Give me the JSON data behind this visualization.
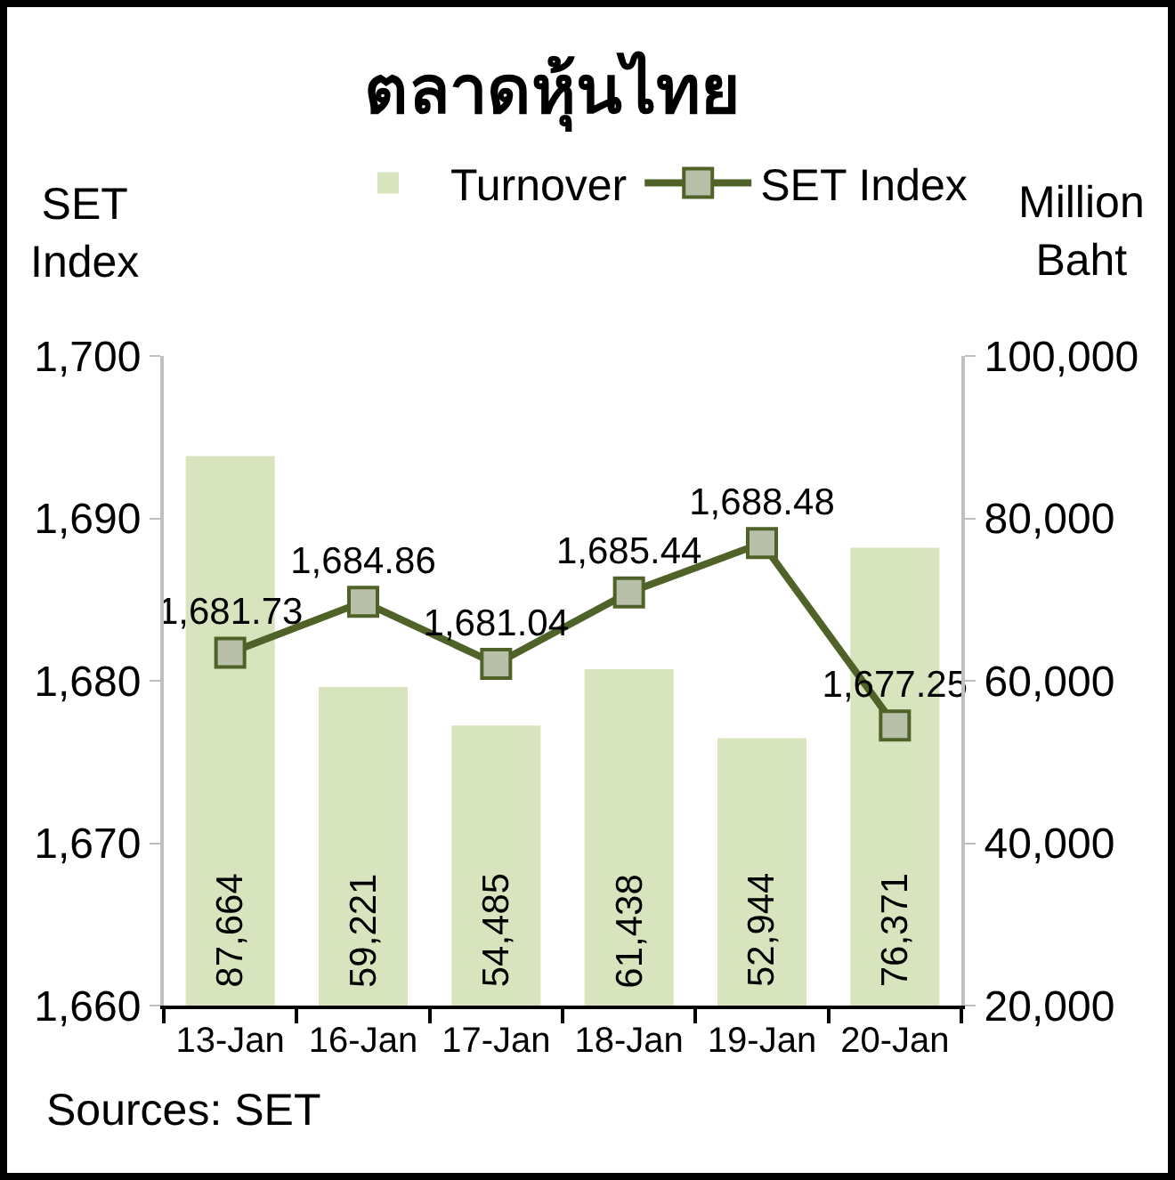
{
  "chart_data": {
    "type": "bar",
    "title": "ตลาดหุ้นไทย",
    "ylabel": "SET Index",
    "y2label": "Million Baht",
    "categories": [
      "13-Jan",
      "16-Jan",
      "17-Jan",
      "18-Jan",
      "19-Jan",
      "20-Jan"
    ],
    "series": [
      {
        "name": "Turnover",
        "axis": "y2",
        "color": "#d7e4bd",
        "values": [
          87664,
          59221,
          54485,
          61438,
          52944,
          76371
        ],
        "value_labels": [
          "87,664",
          "59,221",
          "54,485",
          "61,438",
          "52,944",
          "76,371"
        ]
      },
      {
        "name": "SET Index",
        "type": "line",
        "axis": "y",
        "color": "#4f6228",
        "marker": "square",
        "line_style": "solid",
        "values": [
          1681.73,
          1684.86,
          1681.04,
          1685.44,
          1688.48,
          1677.25
        ],
        "value_labels": [
          "1,681.73",
          "1,684.86",
          "1,681.04",
          "1,685.44",
          "1,688.48",
          "1,677.25"
        ]
      }
    ],
    "ylim": [
      1660,
      1700
    ],
    "yticks": [
      {
        "value": 1660,
        "label": "1,660"
      },
      {
        "value": 1670,
        "label": "1,670"
      },
      {
        "value": 1680,
        "label": "1,680"
      },
      {
        "value": 1690,
        "label": "1,690"
      },
      {
        "value": 1700,
        "label": "1,700"
      }
    ],
    "y2lim": [
      20000,
      100000
    ],
    "y2ticks": [
      {
        "value": 20000,
        "label": "20,000"
      },
      {
        "value": 40000,
        "label": "40,000"
      },
      {
        "value": 60000,
        "label": "60,000"
      },
      {
        "value": 80000,
        "label": "80,000"
      },
      {
        "value": 100000,
        "label": "100,000"
      }
    ],
    "legend": "top",
    "annotations": [
      "Sources: SET"
    ]
  }
}
